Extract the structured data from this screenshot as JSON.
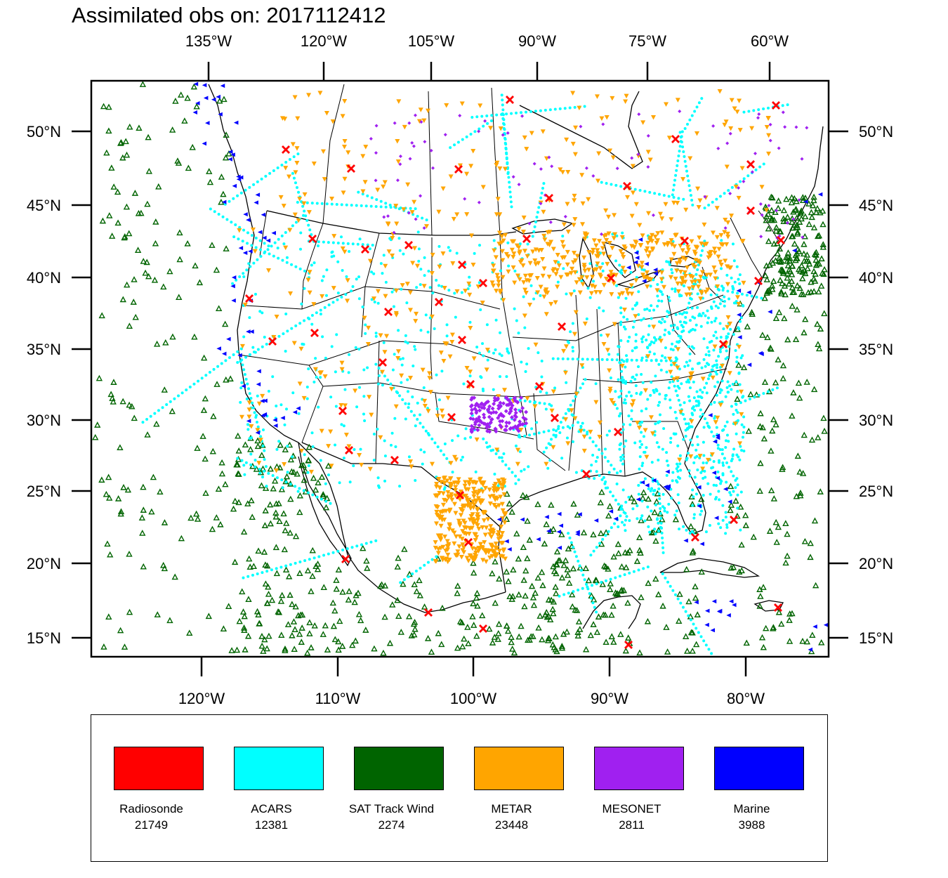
{
  "title": "Assimilated obs on: 2017112412",
  "top_axis": [
    "135°W",
    "120°W",
    "105°W",
    "90°W",
    "75°W",
    "60°W"
  ],
  "bottom_axis": [
    "120°W",
    "110°W",
    "100°W",
    "90°W",
    "80°W"
  ],
  "left_axis": [
    "50°N",
    "45°N",
    "40°N",
    "35°N",
    "30°N",
    "25°N",
    "20°N",
    "15°N"
  ],
  "right_axis": [
    "50°N",
    "45°N",
    "40°N",
    "35°N",
    "30°N",
    "25°N",
    "20°N",
    "15°N"
  ],
  "legend": [
    {
      "key": "radiosonde",
      "label": "Radiosonde",
      "count": "21749",
      "color": "#ff0000"
    },
    {
      "key": "acars",
      "label": "ACARS",
      "count": "12381",
      "color": "#00ffff"
    },
    {
      "key": "sat-track-wind",
      "label": "SAT Track Wind",
      "count": "2274",
      "color": "#006400"
    },
    {
      "key": "metar",
      "label": "METAR",
      "count": "23448",
      "color": "#ffa500"
    },
    {
      "key": "mesonet",
      "label": "MESONET",
      "count": "2811",
      "color": "#a020f0"
    },
    {
      "key": "marine",
      "label": "Marine",
      "count": "3988",
      "color": "#0000ff"
    }
  ],
  "colors": {
    "radiosonde": "#ff0000",
    "acars": "#00ffff",
    "sat_track_wind": "#006400",
    "metar": "#ffa500",
    "mesonet": "#a020f0",
    "marine": "#0000ff",
    "coastline": "#000000"
  }
}
